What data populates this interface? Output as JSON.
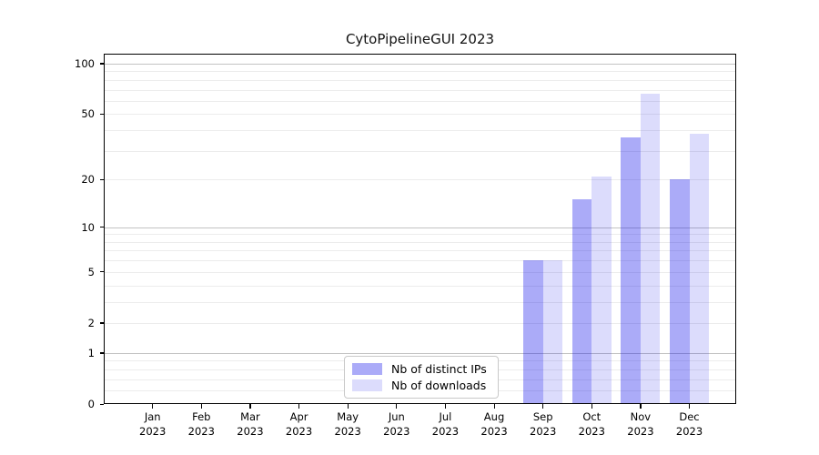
{
  "title": "CytoPipelineGUI 2023",
  "colors": {
    "distinct_ips_bar": "rgba(13,13,234,0.35)",
    "downloads_bar": "rgba(13,13,234,0.145)",
    "major_grid": "#c3c3c3",
    "minor_grid": "#ececec",
    "axis": "#000000"
  },
  "legend": {
    "items": [
      {
        "label": "Nb of distinct IPs",
        "color": "rgba(13,13,234,0.35)"
      },
      {
        "label": "Nb of downloads",
        "color": "rgba(13,13,234,0.145)"
      }
    ]
  },
  "chart_data": {
    "type": "bar",
    "title": "CytoPipelineGUI 2023",
    "x_tick_months": [
      "Jan",
      "Feb",
      "Mar",
      "Apr",
      "May",
      "Jun",
      "Jul",
      "Aug",
      "Sep",
      "Oct",
      "Nov",
      "Dec"
    ],
    "x_tick_year": "2023",
    "categories": [
      "Jan 2023",
      "Feb 2023",
      "Mar 2023",
      "Apr 2023",
      "May 2023",
      "Jun 2023",
      "Jul 2023",
      "Aug 2023",
      "Sep 2023",
      "Oct 2023",
      "Nov 2023",
      "Dec 2023"
    ],
    "series": [
      {
        "name": "Nb of distinct IPs",
        "values": [
          0,
          0,
          0,
          0,
          0,
          0,
          0,
          0,
          6,
          15,
          36,
          20
        ]
      },
      {
        "name": "Nb of downloads",
        "values": [
          0,
          0,
          0,
          0,
          0,
          0,
          0,
          0,
          6,
          21,
          66,
          38
        ]
      }
    ],
    "yscale": "log1p",
    "ylim": [
      0,
      115
    ],
    "yticks": [
      0,
      1,
      2,
      5,
      10,
      20,
      50,
      100
    ],
    "major_gridlines": [
      1,
      10,
      100
    ],
    "minor_gridlines": [
      0.2,
      0.4,
      0.6,
      0.8,
      2,
      3,
      4,
      5,
      6,
      7,
      8,
      9,
      20,
      30,
      40,
      50,
      60,
      70,
      80,
      90
    ],
    "grid": true,
    "legend_position": "lower center",
    "xlabel": "",
    "ylabel": ""
  }
}
